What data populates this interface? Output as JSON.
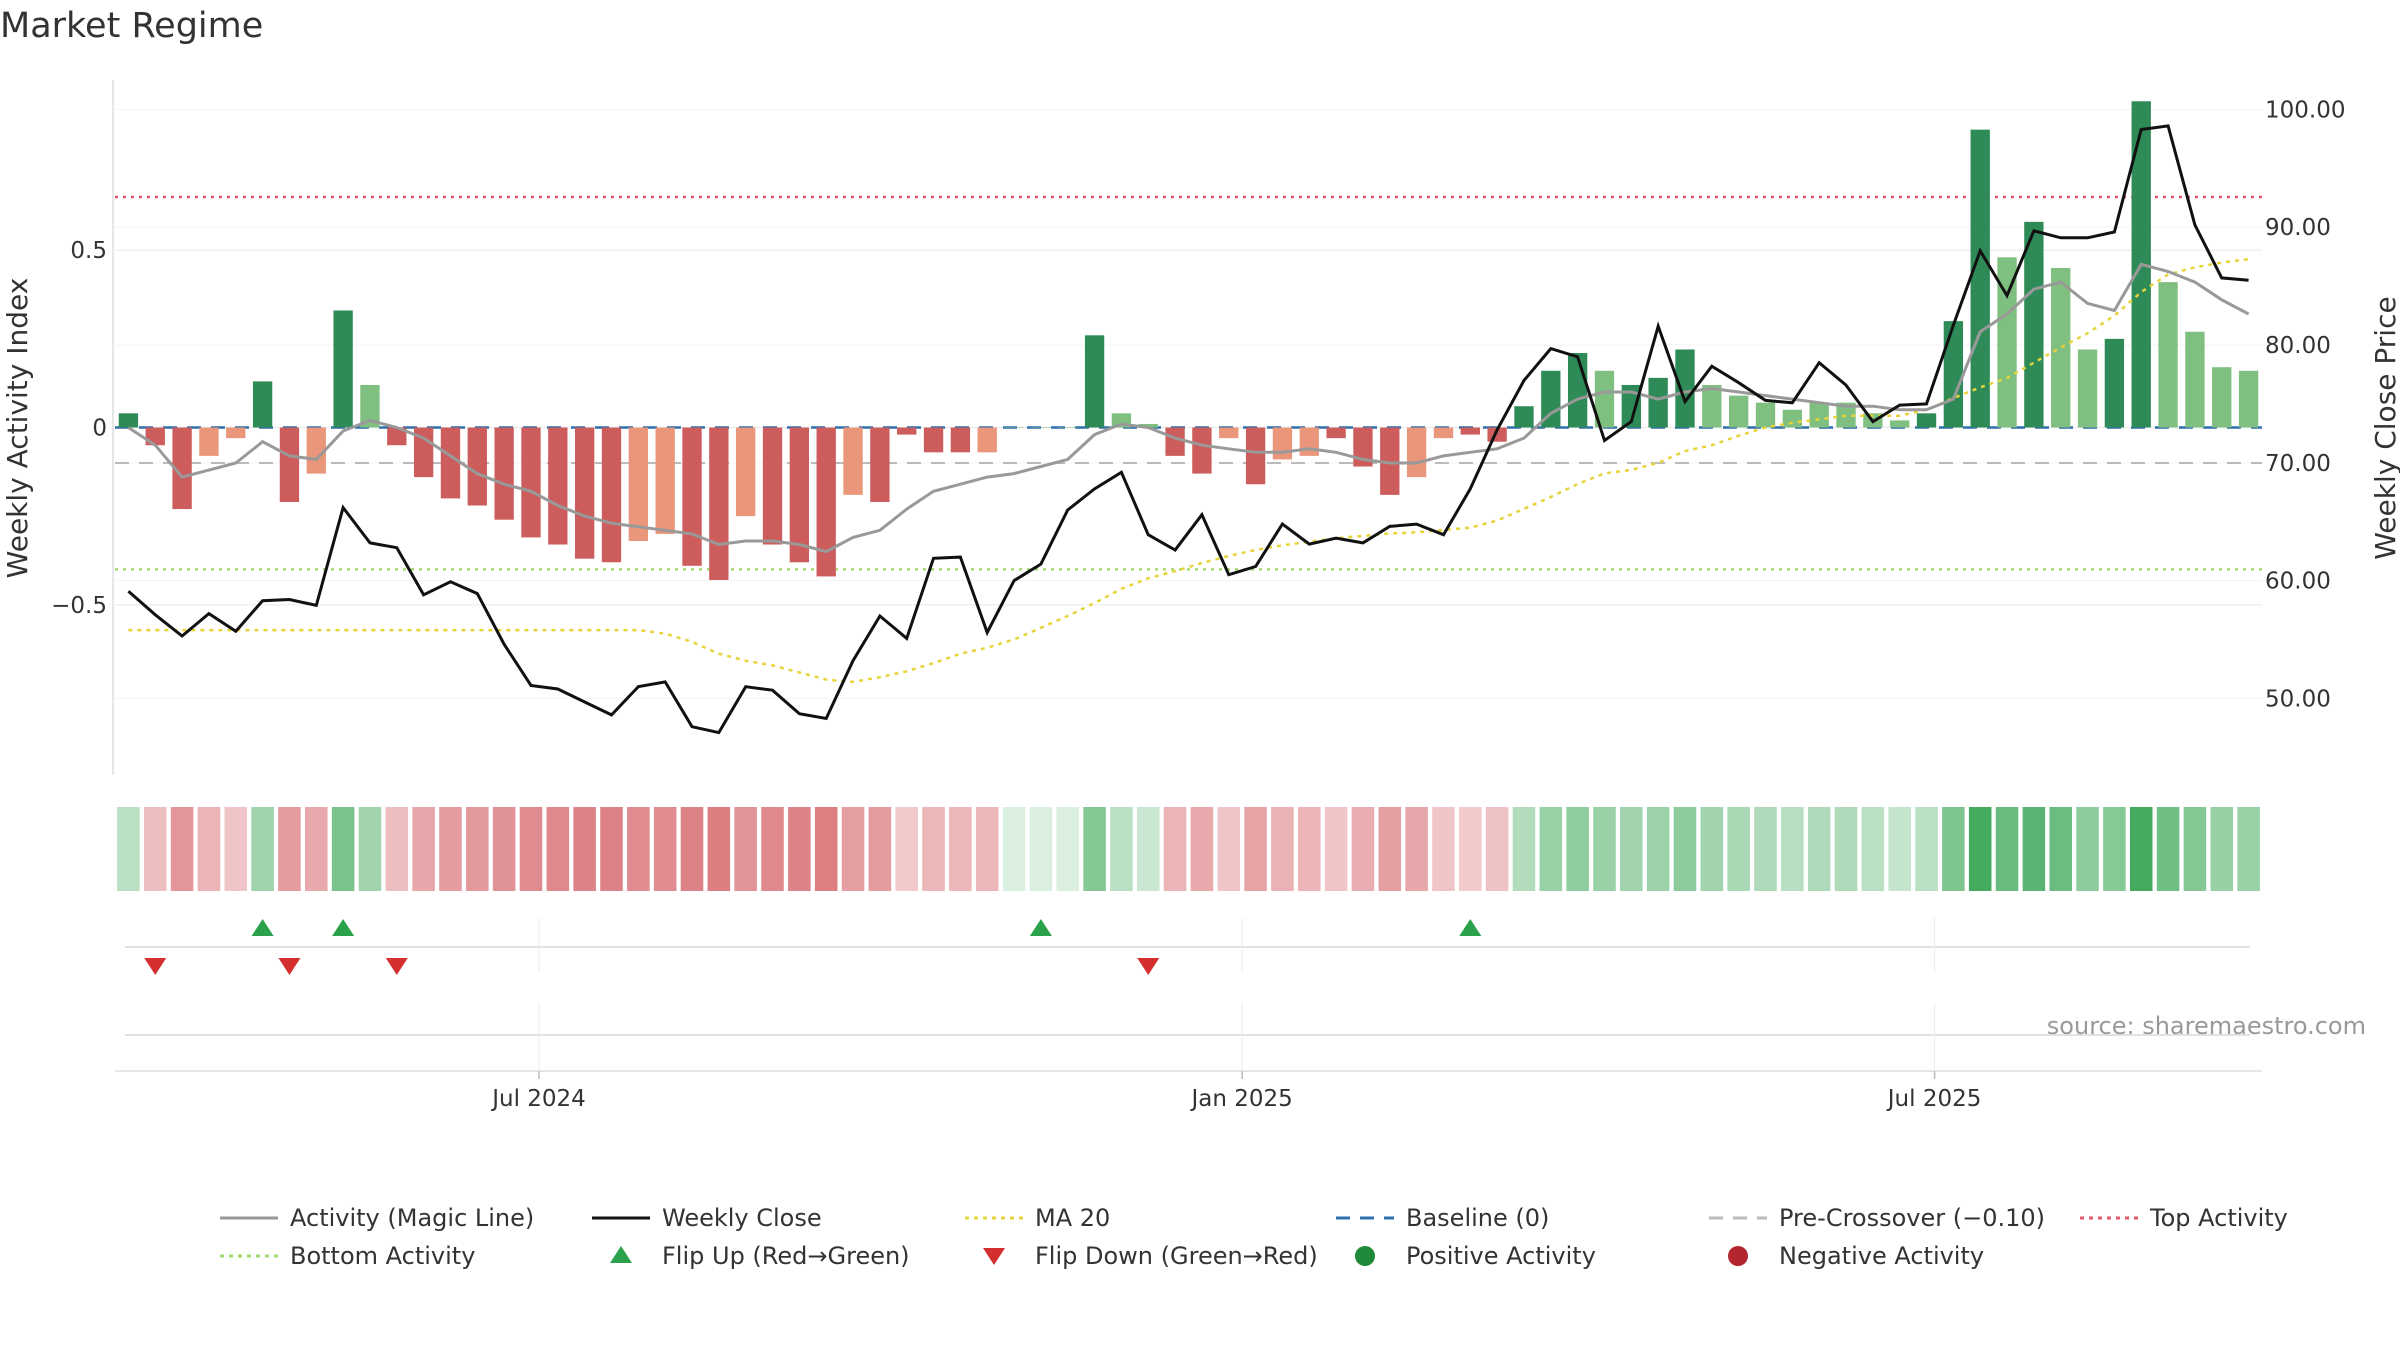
{
  "chart_data": {
    "type": "bar",
    "title": "Market Regime",
    "ylabel_left": "Weekly Activity Index",
    "ylabel_right": "Weekly Close Price",
    "ylim_left": [
      -0.98,
      0.98
    ],
    "ylim_right": [
      43.5,
      102.5
    ],
    "left_ticks": [
      {
        "value": 0.5,
        "label": "0.5"
      },
      {
        "value": 0,
        "label": "0"
      },
      {
        "value": -0.5,
        "label": "−0.5"
      }
    ],
    "right_ticks": [
      {
        "value": 100,
        "label": "100.00"
      },
      {
        "value": 90,
        "label": "90.00"
      },
      {
        "value": 80,
        "label": "80.00"
      },
      {
        "value": 70,
        "label": "70.00"
      },
      {
        "value": 60,
        "label": "60.00"
      },
      {
        "value": 50,
        "label": "50.00"
      }
    ],
    "x_ticks": [
      {
        "week": 15.3,
        "label": "Jul 2024"
      },
      {
        "week": 41.5,
        "label": "Jan 2025"
      },
      {
        "week": 67.3,
        "label": "Jul 2025"
      }
    ],
    "reference_lines": {
      "baseline": 0,
      "pre_crossover": -0.1,
      "top_activity": 0.65,
      "bottom_activity": -0.4
    },
    "activity": [
      0.04,
      -0.05,
      -0.23,
      -0.08,
      -0.03,
      0.13,
      -0.21,
      -0.13,
      0.33,
      0.12,
      -0.05,
      -0.14,
      -0.2,
      -0.22,
      -0.26,
      -0.31,
      -0.33,
      -0.37,
      -0.38,
      -0.32,
      -0.3,
      -0.39,
      -0.43,
      -0.25,
      -0.33,
      -0.38,
      -0.42,
      -0.19,
      -0.21,
      -0.02,
      -0.07,
      -0.07,
      -0.07,
      0,
      0,
      0,
      0.26,
      0.04,
      0.01,
      -0.08,
      -0.13,
      -0.03,
      -0.16,
      -0.09,
      -0.08,
      -0.03,
      -0.11,
      -0.19,
      -0.14,
      -0.03,
      -0.02,
      -0.04,
      0.06,
      0.16,
      0.21,
      0.16,
      0.12,
      0.14,
      0.22,
      0.12,
      0.09,
      0.07,
      0.05,
      0.07,
      0.07,
      0.04,
      0.02,
      0.04,
      0.3,
      0.84,
      0.48,
      0.58,
      0.45,
      0.22,
      0.25,
      0.92,
      0.41,
      0.27,
      0.17,
      0.16
    ],
    "activity_strength": [
      1,
      1,
      1,
      0,
      0,
      1,
      1,
      0,
      1,
      0,
      1,
      1,
      1,
      1,
      1,
      1,
      1,
      1,
      1,
      0,
      0,
      1,
      1,
      0,
      1,
      1,
      1,
      0,
      1,
      1,
      1,
      1,
      0,
      0,
      0,
      0,
      1,
      0,
      0,
      1,
      1,
      0,
      1,
      0,
      0,
      1,
      1,
      1,
      0,
      0,
      1,
      1,
      1,
      1,
      1,
      0,
      1,
      1,
      1,
      0,
      0,
      0,
      0,
      0,
      0,
      0,
      0,
      1,
      1,
      1,
      0,
      1,
      0,
      0,
      1,
      1,
      0,
      0,
      0,
      0
    ],
    "magic_line": [
      0,
      -0.05,
      -0.14,
      -0.12,
      -0.1,
      -0.04,
      -0.08,
      -0.09,
      -0.01,
      0.02,
      0,
      -0.03,
      -0.08,
      -0.13,
      -0.16,
      -0.18,
      -0.22,
      -0.25,
      -0.27,
      -0.28,
      -0.29,
      -0.3,
      -0.33,
      -0.32,
      -0.32,
      -0.33,
      -0.35,
      -0.31,
      -0.29,
      -0.23,
      -0.18,
      -0.16,
      -0.14,
      -0.13,
      -0.11,
      -0.09,
      -0.02,
      0.01,
      0,
      -0.03,
      -0.05,
      -0.06,
      -0.07,
      -0.07,
      -0.06,
      -0.07,
      -0.09,
      -0.1,
      -0.1,
      -0.08,
      -0.07,
      -0.06,
      -0.03,
      0.04,
      0.08,
      0.1,
      0.1,
      0.08,
      0.1,
      0.11,
      0.1,
      0.09,
      0.08,
      0.07,
      0.06,
      0.06,
      0.05,
      0.05,
      0.08,
      0.27,
      0.32,
      0.39,
      0.41,
      0.35,
      0.33,
      0.46,
      0.44,
      0.41,
      0.36,
      0.32
    ],
    "weekly_close": [
      59.1,
      57.1,
      55.3,
      57.2,
      55.7,
      58.3,
      58.4,
      57.9,
      66.2,
      63.2,
      62.8,
      58.8,
      59.9,
      58.9,
      54.6,
      51.1,
      50.8,
      49.7,
      48.6,
      51,
      51.4,
      47.6,
      47.1,
      51,
      50.7,
      48.7,
      48.3,
      53.2,
      57,
      55.1,
      61.9,
      62,
      55.6,
      60,
      61.4,
      66,
      67.8,
      69.2,
      63.9,
      62.6,
      65.6,
      60.5,
      61.2,
      64.8,
      63.1,
      63.6,
      63.2,
      64.6,
      64.8,
      63.9,
      67.8,
      72.8,
      77,
      79.7,
      79,
      71.9,
      73.5,
      81.6,
      75.2,
      78.2,
      76.8,
      75.3,
      75.1,
      78.5,
      76.6,
      73.5,
      74.9,
      75,
      81.7,
      88,
      84.2,
      89.7,
      89.1,
      89.1,
      89.6,
      98.3,
      98.6,
      90.2,
      85.7,
      85.5
    ],
    "ma20": [
      55.8,
      55.8,
      55.8,
      55.8,
      55.8,
      55.8,
      55.8,
      55.8,
      55.8,
      55.8,
      55.8,
      55.8,
      55.8,
      55.8,
      55.8,
      55.8,
      55.8,
      55.8,
      55.8,
      55.8,
      55.5,
      54.8,
      53.8,
      53.2,
      52.8,
      52.2,
      51.6,
      51.4,
      51.8,
      52.3,
      53,
      53.8,
      54.3,
      55,
      56,
      57,
      58.1,
      59.3,
      60.2,
      60.8,
      61.5,
      62.1,
      62.6,
      63,
      63.3,
      63.6,
      63.8,
      64,
      64.1,
      64.3,
      64.5,
      65.1,
      66.1,
      67.1,
      68.2,
      69.1,
      69.4,
      70,
      71,
      71.5,
      72.3,
      73,
      73.4,
      73.7,
      74,
      74,
      74,
      74.5,
      75.5,
      76.4,
      77.2,
      78.5,
      79.8,
      81,
      82.5,
      84.5,
      86,
      86.6,
      87,
      87.3
    ],
    "flips_up": [
      5,
      8,
      34,
      50
    ],
    "flips_down": [
      1,
      6,
      10,
      38
    ],
    "legend": [
      {
        "label": "Activity (Magic Line)",
        "kind": "line",
        "color": "#999999",
        "style": "solid"
      },
      {
        "label": "Weekly Close",
        "kind": "line",
        "color": "#111111",
        "style": "solid"
      },
      {
        "label": "MA 20",
        "kind": "line",
        "color": "#e6d43a",
        "style": "dotted"
      },
      {
        "label": "Baseline (0)",
        "kind": "line",
        "color": "#2e6fae",
        "style": "dashed"
      },
      {
        "label": "Pre-Crossover (−0.10)",
        "kind": "line",
        "color": "#bbbbbb",
        "style": "dashed"
      },
      {
        "label": "Top Activity",
        "kind": "line",
        "color": "#e05a6a",
        "style": "dotted"
      },
      {
        "label": "Bottom Activity",
        "kind": "line",
        "color": "#a8d86e",
        "style": "dotted"
      },
      {
        "label": "Flip Up (Red→Green)",
        "kind": "triangle-up",
        "color": "#2aa14a"
      },
      {
        "label": "Flip Down (Green→Red)",
        "kind": "triangle-down",
        "color": "#d32f2f"
      },
      {
        "label": "Positive Activity",
        "kind": "dot",
        "color": "#1f8b3a"
      },
      {
        "label": "Negative Activity",
        "kind": "dot",
        "color": "#b3262f"
      }
    ],
    "source": "source: sharemaestro.com",
    "colors": {
      "pos_strong": "#2e8b57",
      "pos_weak": "#7fbf7f",
      "neg_strong": "#cd5c5c",
      "neg_weak": "#e9967a",
      "magic_line": "#999999",
      "close": "#111111",
      "ma20": "#e6d43a",
      "baseline": "#2e6fae",
      "pre_crossover": "#bbbbbb",
      "top_activity": "#e05a6a",
      "bottom_activity": "#a8d86e",
      "flip_up": "#2aa14a",
      "flip_down": "#d32f2f",
      "grid": "#ebebeb",
      "text": "#333333"
    }
  }
}
